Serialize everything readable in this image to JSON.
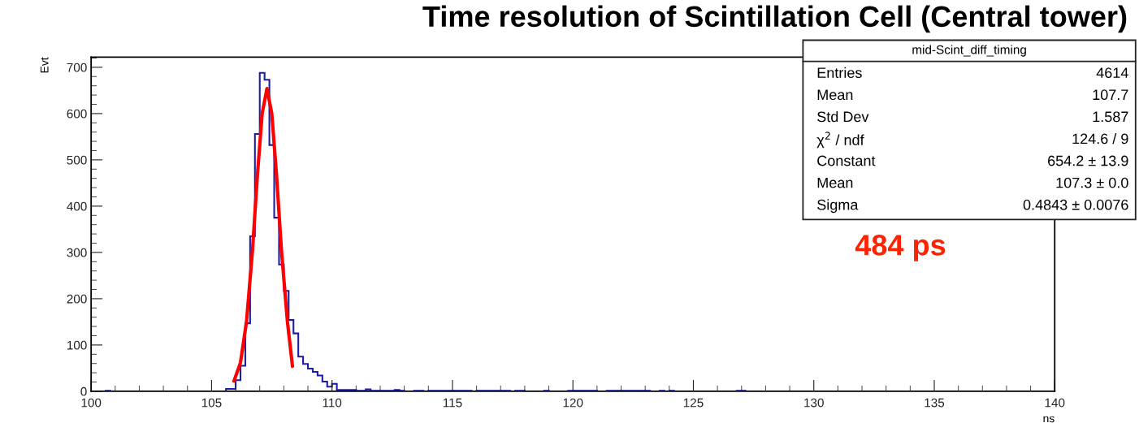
{
  "chart_data": {
    "type": "histogram",
    "title": "Time resolution of Scintillation Cell (Central tower)",
    "xlabel": "ns",
    "ylabel": "Evt",
    "xlim": [
      100,
      140
    ],
    "xticks": [
      100,
      105,
      110,
      115,
      120,
      125,
      130,
      135,
      140
    ],
    "ylim": [
      0,
      722
    ],
    "yticks": [
      0,
      100,
      200,
      300,
      400,
      500,
      600,
      700
    ],
    "grid": false,
    "series": [
      {
        "color": "#1c1ca8",
        "bins": [
          100.4,
          100.6,
          100.8,
          101.0,
          101.2,
          101.4,
          101.6,
          101.8,
          102.0,
          102.2,
          102.4,
          102.6,
          102.8,
          103.0,
          103.2,
          103.4,
          103.6,
          103.8,
          104.0,
          104.2,
          104.4,
          104.6,
          104.8,
          105.0,
          105.2,
          105.4,
          105.6,
          105.8,
          106.0,
          106.2,
          106.4,
          106.6,
          106.8,
          107.0,
          107.2,
          107.4,
          107.6,
          107.8,
          108.0,
          108.2,
          108.4,
          108.6,
          108.8,
          109.0,
          109.2,
          109.4,
          109.6,
          109.8,
          110.0,
          110.2,
          110.4,
          110.6,
          110.8,
          111.0,
          111.2,
          111.4,
          111.6,
          111.8,
          112.0,
          112.2,
          112.4,
          112.6,
          112.8,
          113.0,
          113.2,
          113.4,
          113.6,
          113.8,
          114.0,
          114.2,
          114.4,
          114.6,
          114.8,
          115.0,
          115.2,
          115.4,
          115.6,
          115.8,
          116.0,
          116.2,
          116.4,
          116.6,
          116.8,
          117.0,
          117.2,
          117.4,
          117.6,
          117.8,
          118.0,
          118.2,
          118.4,
          118.6,
          118.8,
          119.0,
          119.2,
          119.4,
          119.6,
          119.8,
          120.0,
          120.2,
          120.4,
          120.6,
          120.8,
          121.0,
          121.2,
          121.4,
          121.6,
          121.8,
          122.0,
          122.2,
          122.4,
          122.6,
          122.8,
          123.0,
          123.2,
          123.4,
          123.6,
          123.8,
          124.0,
          124.2,
          124.4,
          124.6,
          124.8,
          125.0,
          125.2,
          125.4,
          125.6,
          125.8,
          126.0,
          126.2,
          126.4,
          126.6,
          126.8,
          127.0,
          127.2
        ],
        "values": [
          0,
          1,
          0,
          0,
          0,
          0,
          0,
          0,
          0,
          0,
          0,
          0,
          0,
          0,
          0,
          0,
          0,
          0,
          0,
          0,
          0,
          0,
          0,
          0,
          0,
          0,
          5,
          5,
          24,
          55,
          147,
          335,
          556,
          688,
          673,
          532,
          375,
          274,
          217,
          154,
          125,
          75,
          59,
          49,
          42,
          34,
          21,
          10,
          16,
          3,
          3,
          3,
          3,
          1,
          1,
          4,
          1,
          1,
          1,
          1,
          1,
          3,
          1,
          0,
          0,
          1,
          1,
          0,
          1,
          1,
          1,
          1,
          1,
          1,
          1,
          1,
          1,
          0,
          1,
          1,
          1,
          1,
          1,
          1,
          1,
          0,
          1,
          1,
          0,
          0,
          0,
          0,
          1,
          0,
          0,
          0,
          0,
          1,
          1,
          1,
          1,
          1,
          1,
          0,
          0,
          1,
          1,
          1,
          1,
          1,
          1,
          1,
          1,
          1,
          0,
          0,
          1,
          0,
          1,
          0,
          0,
          0,
          0,
          0,
          0,
          0,
          0,
          0,
          0,
          0,
          0,
          0,
          1,
          1
        ]
      },
      {
        "type": "line",
        "color": "#ff0000",
        "x": [
          105.93,
          106.2,
          106.45,
          106.7,
          106.9,
          107.1,
          107.3,
          107.5,
          107.7,
          107.9,
          108.15,
          108.36
        ],
        "values": [
          22,
          62,
          150,
          305,
          465,
          600,
          654,
          600,
          465,
          305,
          150,
          54
        ]
      }
    ],
    "annotations": [
      "mid-Scint_diff_timing",
      "Entries",
      "4614",
      "Mean",
      "107.7",
      "Std Dev",
      "1.587",
      "χ$^{2}$ / ndf",
      "124.6 / 9",
      "Constant",
      "654.2 ± 13.9",
      "Mean",
      "107.3 ± 0.0",
      "Sigma",
      "0.4843 ± 0.0076",
      "484 ps"
    ]
  }
}
